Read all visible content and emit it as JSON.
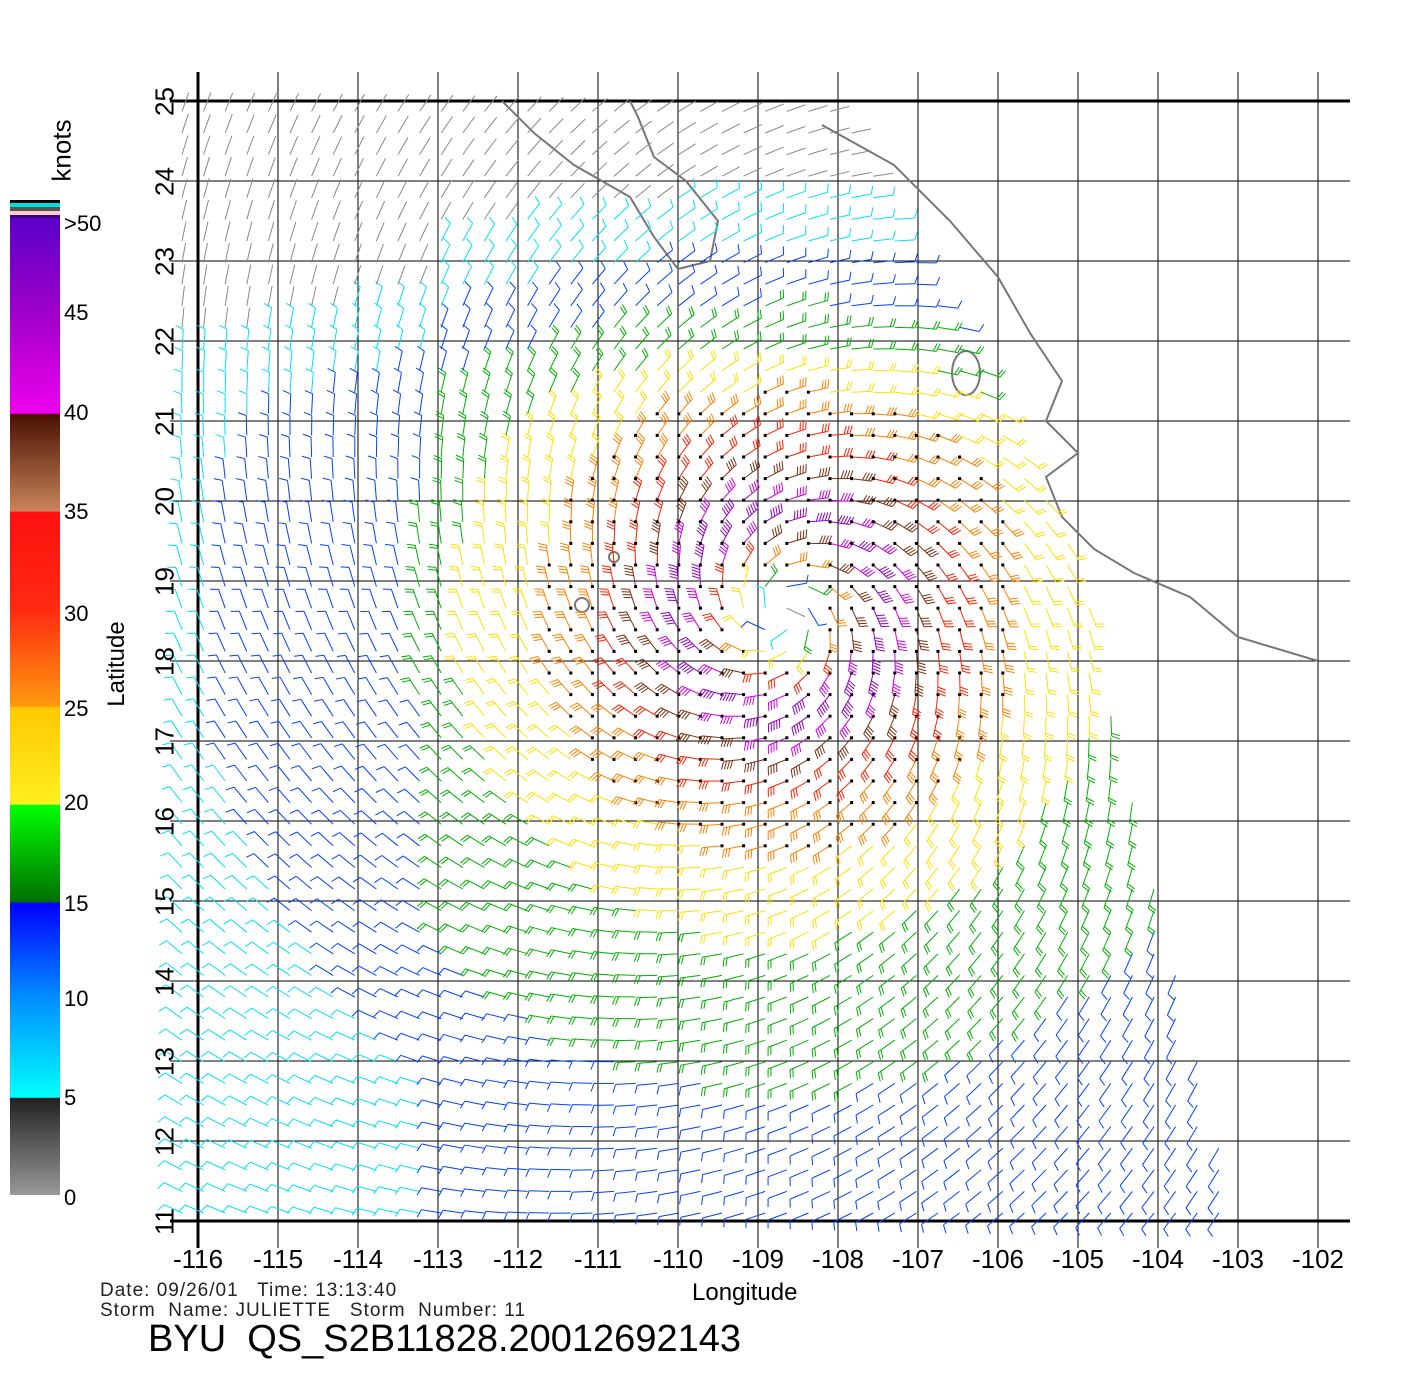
{
  "colorbar": {
    "unit": "knots",
    "labels": [
      ">50",
      "45",
      "40",
      "35",
      "30",
      "25",
      "20",
      "15",
      "10",
      "5",
      "0"
    ]
  },
  "axes": {
    "xlabel": "Longitude",
    "ylabel": "Latitude",
    "xticks": [
      "-116",
      "-115",
      "-114",
      "-113",
      "-112",
      "-111",
      "-110",
      "-109",
      "-108",
      "-107",
      "-106",
      "-105",
      "-104",
      "-103",
      "-102"
    ],
    "yticks": [
      "25",
      "24",
      "23",
      "22",
      "21",
      "20",
      "19",
      "18",
      "17",
      "16",
      "15",
      "14",
      "13",
      "12",
      "11"
    ]
  },
  "info": {
    "line1": "Date: 09/26/01   Time: 13:13:40",
    "line2": "Storm  Name: JULIETTE   Storm  Number: 11",
    "title": "BYU  QS_S2B11828.20012692143"
  }
}
